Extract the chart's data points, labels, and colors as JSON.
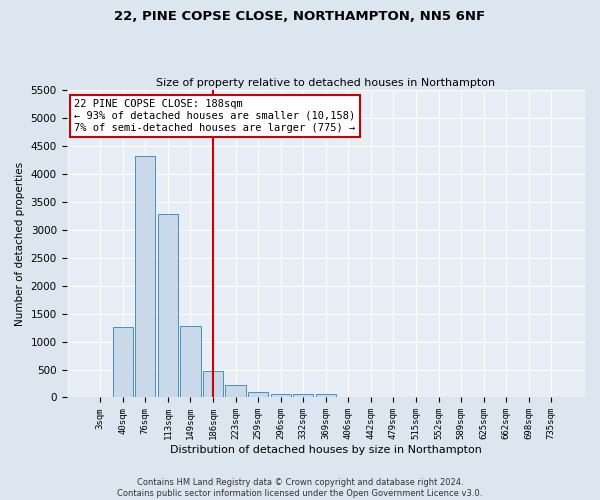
{
  "title1": "22, PINE COPSE CLOSE, NORTHAMPTON, NN5 6NF",
  "title2": "Size of property relative to detached houses in Northampton",
  "xlabel": "Distribution of detached houses by size in Northampton",
  "ylabel": "Number of detached properties",
  "categories": [
    "3sqm",
    "40sqm",
    "76sqm",
    "113sqm",
    "149sqm",
    "186sqm",
    "223sqm",
    "259sqm",
    "296sqm",
    "332sqm",
    "369sqm",
    "406sqm",
    "442sqm",
    "479sqm",
    "515sqm",
    "552sqm",
    "589sqm",
    "625sqm",
    "662sqm",
    "698sqm",
    "735sqm"
  ],
  "values": [
    0,
    1270,
    4330,
    3290,
    1280,
    470,
    230,
    100,
    65,
    55,
    60,
    0,
    0,
    0,
    0,
    0,
    0,
    0,
    0,
    0,
    0
  ],
  "bar_color": "#c9d9ea",
  "bar_edge_color": "#4a8fc0",
  "vline_x": 5,
  "vline_color": "#cc0000",
  "annotation_text": "22 PINE COPSE CLOSE: 188sqm\n← 93% of detached houses are smaller (10,158)\n7% of semi-detached houses are larger (775) →",
  "annotation_box_color": "#ffffff",
  "annotation_box_edge": "#cc0000",
  "ylim": [
    0,
    5500
  ],
  "yticks": [
    0,
    500,
    1000,
    1500,
    2000,
    2500,
    3000,
    3500,
    4000,
    4500,
    5000,
    5500
  ],
  "footer": "Contains HM Land Registry data © Crown copyright and database right 2024.\nContains public sector information licensed under the Open Government Licence v3.0.",
  "bg_color": "#dce6f0",
  "plot_bg_color": "#e8eef6"
}
